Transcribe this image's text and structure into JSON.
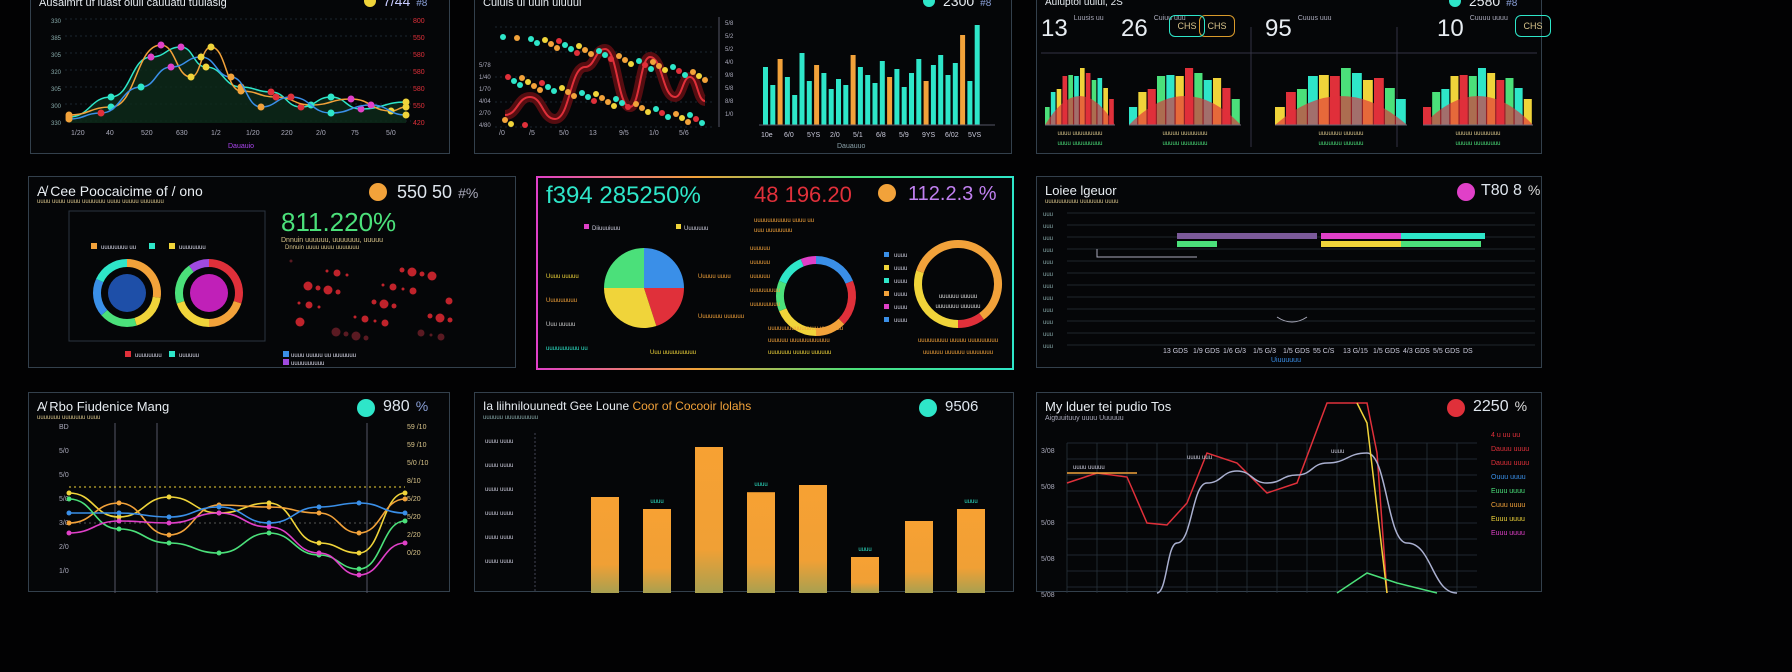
{
  "row1": {
    "p1": {
      "title": "Ausaimrt uf iuast oluii cauuatu tuuiasig",
      "kpi": "7/44",
      "kpi_sub": "#8",
      "yaxis": [
        "330",
        "385",
        "305",
        "320",
        "305",
        "300",
        "330"
      ],
      "raxis": [
        "800",
        "550",
        "580",
        "580",
        "580",
        "550",
        "420"
      ],
      "xaxis": [
        "1/20",
        "40",
        "520",
        "630",
        "1/2",
        "1/20",
        "220",
        "2/0",
        "75",
        "5/0"
      ],
      "footer": "Dauauio"
    },
    "p2": {
      "title": "Cuiuis ui uuin uiuuui",
      "kpi": "2300",
      "kpi_sub": "#8",
      "yaxis": [
        "5/78",
        "1/40",
        "1/70",
        "4/04",
        "2/70",
        "4/80"
      ],
      "xaxis": [
        "/0",
        "/5",
        "5/0",
        "13",
        "9/5",
        "1/0",
        "5/6"
      ],
      "xaxis2": [
        "5/8",
        "5/2",
        "5/2",
        "4/0",
        "9/8",
        "5/8",
        "8/8",
        "1/0"
      ],
      "bars_x": [
        "10e",
        "6/0",
        "5YS",
        "2/0",
        "5/1",
        "6/8",
        "5/9",
        "9YS",
        "6/02",
        "5VS"
      ],
      "footer": "Dauauuo"
    },
    "p3": {
      "title": "Auiuptoi uuiui, 2S",
      "kpi": "2580",
      "kpi_sub": "#8",
      "stats": [
        {
          "value": "13",
          "label1": "Luusis",
          "label2": "uu"
        },
        {
          "value": "26",
          "label1": "Cuiuu",
          "label2": "uuu",
          "badge": "CHS"
        },
        {
          "value": "95",
          "label1": "Cuuus",
          "label2": "uuu",
          "badge": "CHS"
        },
        {
          "value": "10",
          "label1": "Cuuuu",
          "label2": "uuuu",
          "badge": "CHS"
        }
      ],
      "caps": [
        "uuuu uuuuuuuuu",
        "uuuuu uuuuuuuu",
        "uuuuuuu uuuuuu",
        "uuuuu uuuuuuuu"
      ]
    }
  },
  "row2": {
    "p4": {
      "title": "A̸ Cee Poocaicime of / ono",
      "kpi": "550 50",
      "kpi_sub": "#%",
      "big": "811.220%",
      "big_sub": "Dnnuin uuuuuu, uuuuuuu, uuuuu",
      "legend1": [
        "uuuuuuuu uu",
        "uuuuuuuu"
      ],
      "legend2": [
        "uuuuuuuu",
        "uuuuuu"
      ],
      "legend3": [
        "uuuu uuuuu uu uuuuuuu",
        "uuuuuuuuuu"
      ]
    },
    "p5": {
      "big1": "f394 285250%",
      "big2": "48 196.20",
      "big3": "112.2.3 %",
      "labels_left": [
        "Diiuuuiuuu",
        "Uuuu uuuuu",
        "Uuuuuuuuu",
        "Uuu uuuuu",
        "uuuuuuuuuu uu"
      ],
      "labels_mid": [
        "uuuuuu",
        "uuuuuu",
        "uuuuuu",
        "uuuuuuuuu",
        "uuuuuuuuu"
      ],
      "labels_right": [
        "uuuu",
        "uuuu",
        "uuuu",
        "uuuu",
        "uuuu",
        "uuuu"
      ]
    },
    "p6": {
      "title": "Loiee lgeuor",
      "kpi": "T80 8",
      "kpi_sub": "%",
      "xaxis": [
        "13 GDS",
        "1/9 GDS",
        "1/6 G/3",
        "1/5 G/3",
        "1/5 GDS",
        "55 C/S",
        "13 G/15",
        "1/5 GDS",
        "4/3 GDS",
        "5/5 GDS",
        "DS"
      ],
      "footer": "Uiuuuuuu"
    }
  },
  "row3": {
    "p7": {
      "title": "A̸ Rbo Fiudenice Mang",
      "kpi": "980",
      "kpi_sub": "%",
      "raxis": [
        "59 /10",
        "59 /10",
        "5/0 /10",
        "8/10",
        "5/20",
        "5/20",
        "2/20",
        "0/20"
      ],
      "yaxis": [
        "BD",
        "5/0",
        "5/0",
        "5/0",
        "3/0",
        "2/0",
        "1/0"
      ]
    },
    "p8": {
      "title": "Ia liihnilouunedt Gee Loune",
      "title_accent": "Coor of Cocooir lolahs",
      "kpi": "9506",
      "yaxis": [
        "uuuu uuuu",
        "uuuu uuuu",
        "uuuu uuuu",
        "uuuu uuuu",
        "uuuu uuuu",
        "uuuu uuuu"
      ],
      "bar_labels": [
        "uuuu",
        "uuuu",
        "uuuu",
        "uuuu",
        "uuuu",
        "uuuu",
        "uuuu"
      ]
    },
    "p9": {
      "title": "My lduer tei pudio Tos",
      "title_sub": "Aigtuuituuy uuuu Uuuuuu",
      "kpi": "2250",
      "kpi_sub": "%",
      "legend": [
        "4 u uu uu",
        "Dauuu uuuu",
        "Dauuu uuuu",
        "Ouuu uuuu",
        "Euuu uuuu",
        "Cuuu uuuu",
        "Euuu uuuu",
        "Euuu uuuu"
      ],
      "yaxis": [
        "3/08",
        "5/08",
        "5/08",
        "5/08",
        "5/08"
      ]
    }
  },
  "colors": {
    "cyan": "#2ee6c9",
    "orange": "#f2a23a",
    "red": "#e0303a",
    "green": "#4be07a",
    "magenta": "#e040c8",
    "yellow": "#f0d43a",
    "blue": "#3a8fe8",
    "purple": "#a04ae0"
  }
}
